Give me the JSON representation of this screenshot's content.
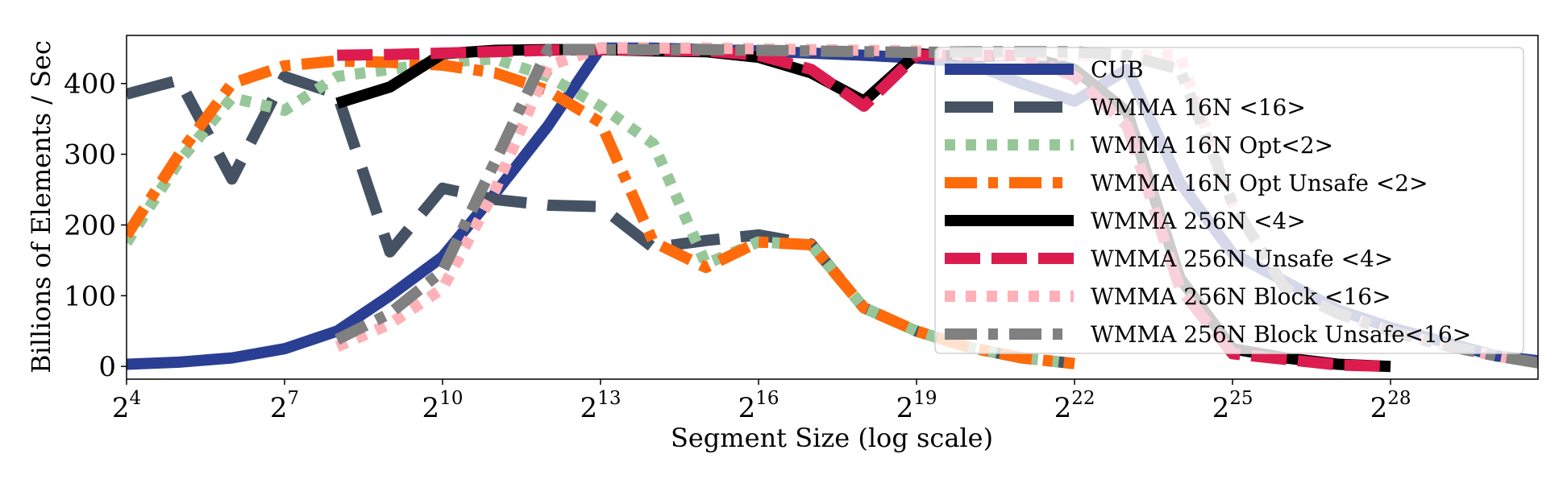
{
  "chart_data": {
    "type": "line",
    "title": "",
    "xlabel": "Segment Size (log scale)",
    "ylabel": "Billions of Elements / Sec",
    "x_scale": "log2",
    "xlim": [
      4,
      30.8
    ],
    "ylim": [
      -18,
      468
    ],
    "x_ticks": [
      {
        "base": "2",
        "exp": "4",
        "value": 4
      },
      {
        "base": "2",
        "exp": "7",
        "value": 7
      },
      {
        "base": "2",
        "exp": "10",
        "value": 10
      },
      {
        "base": "2",
        "exp": "13",
        "value": 13
      },
      {
        "base": "2",
        "exp": "16",
        "value": 16
      },
      {
        "base": "2",
        "exp": "19",
        "value": 19
      },
      {
        "base": "2",
        "exp": "22",
        "value": 22
      },
      {
        "base": "2",
        "exp": "25",
        "value": 25
      },
      {
        "base": "2",
        "exp": "28",
        "value": 28
      }
    ],
    "y_ticks": [
      "0",
      "100",
      "200",
      "300",
      "400"
    ],
    "y_tick_values": [
      0,
      100,
      200,
      300,
      400
    ],
    "grid": false,
    "legend_position": "top-right",
    "series": [
      {
        "name": "CUB",
        "color": "#2a3f93",
        "dash": "solid",
        "x": [
          4,
          5,
          6,
          7,
          8,
          9,
          10,
          11,
          12,
          13,
          14,
          15,
          16,
          17,
          18,
          19,
          20,
          21,
          22,
          23,
          24,
          25,
          26,
          27,
          28,
          29,
          30,
          30.8
        ],
        "y": [
          3,
          6,
          12,
          25,
          50,
          100,
          155,
          245,
          340,
          450,
          450,
          448,
          446,
          443,
          440,
          436,
          430,
          400,
          375,
          420,
          260,
          160,
          120,
          80,
          55,
          35,
          15,
          8
        ]
      },
      {
        "name": "WMMA 16N <16>",
        "color": "#455263",
        "dash": "longdash",
        "x": [
          4,
          5,
          6,
          7,
          8,
          9,
          10,
          11,
          12,
          13,
          14,
          15,
          16,
          17,
          18,
          19,
          20,
          21,
          22
        ],
        "y": [
          385,
          405,
          265,
          410,
          385,
          162,
          252,
          236,
          228,
          226,
          168,
          178,
          186,
          173,
          83,
          50,
          27,
          12,
          4
        ]
      },
      {
        "name": "WMMA 16N Opt<2>",
        "color": "#97c799",
        "dash": "dot",
        "x": [
          4,
          5,
          6,
          7,
          8,
          9,
          10,
          11,
          12,
          13,
          14,
          15,
          16,
          17,
          18,
          19,
          20,
          21,
          22
        ],
        "y": [
          175,
          290,
          380,
          362,
          410,
          420,
          430,
          435,
          410,
          368,
          315,
          145,
          176,
          172,
          83,
          50,
          27,
          12,
          4
        ]
      },
      {
        "name": "WMMA 16N Opt Unsafe <2>",
        "color": "#ff6a0a",
        "dash": "dashdot",
        "x": [
          4,
          5,
          6,
          7,
          8,
          9,
          10,
          11,
          12,
          13,
          14,
          15,
          16,
          17,
          18,
          19,
          20,
          21,
          22
        ],
        "y": [
          185,
          300,
          400,
          425,
          432,
          430,
          426,
          415,
          390,
          345,
          176,
          140,
          176,
          172,
          83,
          50,
          27,
          12,
          4
        ]
      },
      {
        "name": "WMMA 256N <4>",
        "color": "#000000",
        "dash": "solid",
        "x": [
          8,
          9,
          10,
          11,
          12,
          13,
          14,
          15,
          16,
          17,
          18,
          19,
          20,
          21,
          22,
          23,
          24,
          25,
          26,
          27,
          28
        ],
        "y": [
          372,
          395,
          442,
          447,
          448,
          448,
          446,
          445,
          437,
          415,
          375,
          442,
          438,
          440,
          420,
          360,
          125,
          25,
          12,
          3,
          0
        ]
      },
      {
        "name": "WMMA 256N Unsafe <4>",
        "color": "#dc1c4f",
        "dash": "dash",
        "x": [
          8,
          9,
          10,
          11,
          12,
          13,
          14,
          15,
          16,
          17,
          18,
          19,
          20,
          21,
          22,
          23,
          24,
          25,
          26,
          27,
          28
        ],
        "y": [
          440,
          441,
          443,
          445,
          447,
          448,
          447,
          446,
          440,
          420,
          368,
          440,
          440,
          440,
          410,
          340,
          110,
          18,
          10,
          2,
          0
        ]
      },
      {
        "name": "WMMA 256N Block <16>",
        "color": "#ffb1b8",
        "dash": "dot",
        "x": [
          8,
          9,
          10,
          11,
          12,
          13,
          14,
          15,
          16,
          17,
          18,
          19,
          20,
          21,
          22,
          23,
          24,
          25,
          26,
          27,
          28,
          29,
          30,
          30.8
        ],
        "y": [
          28,
          60,
          110,
          250,
          425,
          450,
          450,
          450,
          449,
          448,
          447,
          446,
          440,
          440,
          440,
          440,
          440,
          230,
          110,
          75,
          50,
          30,
          15,
          5
        ]
      },
      {
        "name": "WMMA 256N Block Unsafe<16>",
        "color": "#808080",
        "dash": "dashdot",
        "x": [
          8,
          9,
          10,
          11,
          12,
          13,
          14,
          15,
          16,
          17,
          18,
          19,
          20,
          21,
          22,
          23,
          24,
          25,
          26,
          27,
          28,
          29,
          30,
          30.8
        ],
        "y": [
          38,
          75,
          135,
          290,
          448,
          448,
          448,
          448,
          447,
          446,
          445,
          444,
          445,
          445,
          445,
          440,
          420,
          230,
          110,
          75,
          50,
          30,
          15,
          5
        ]
      }
    ]
  }
}
